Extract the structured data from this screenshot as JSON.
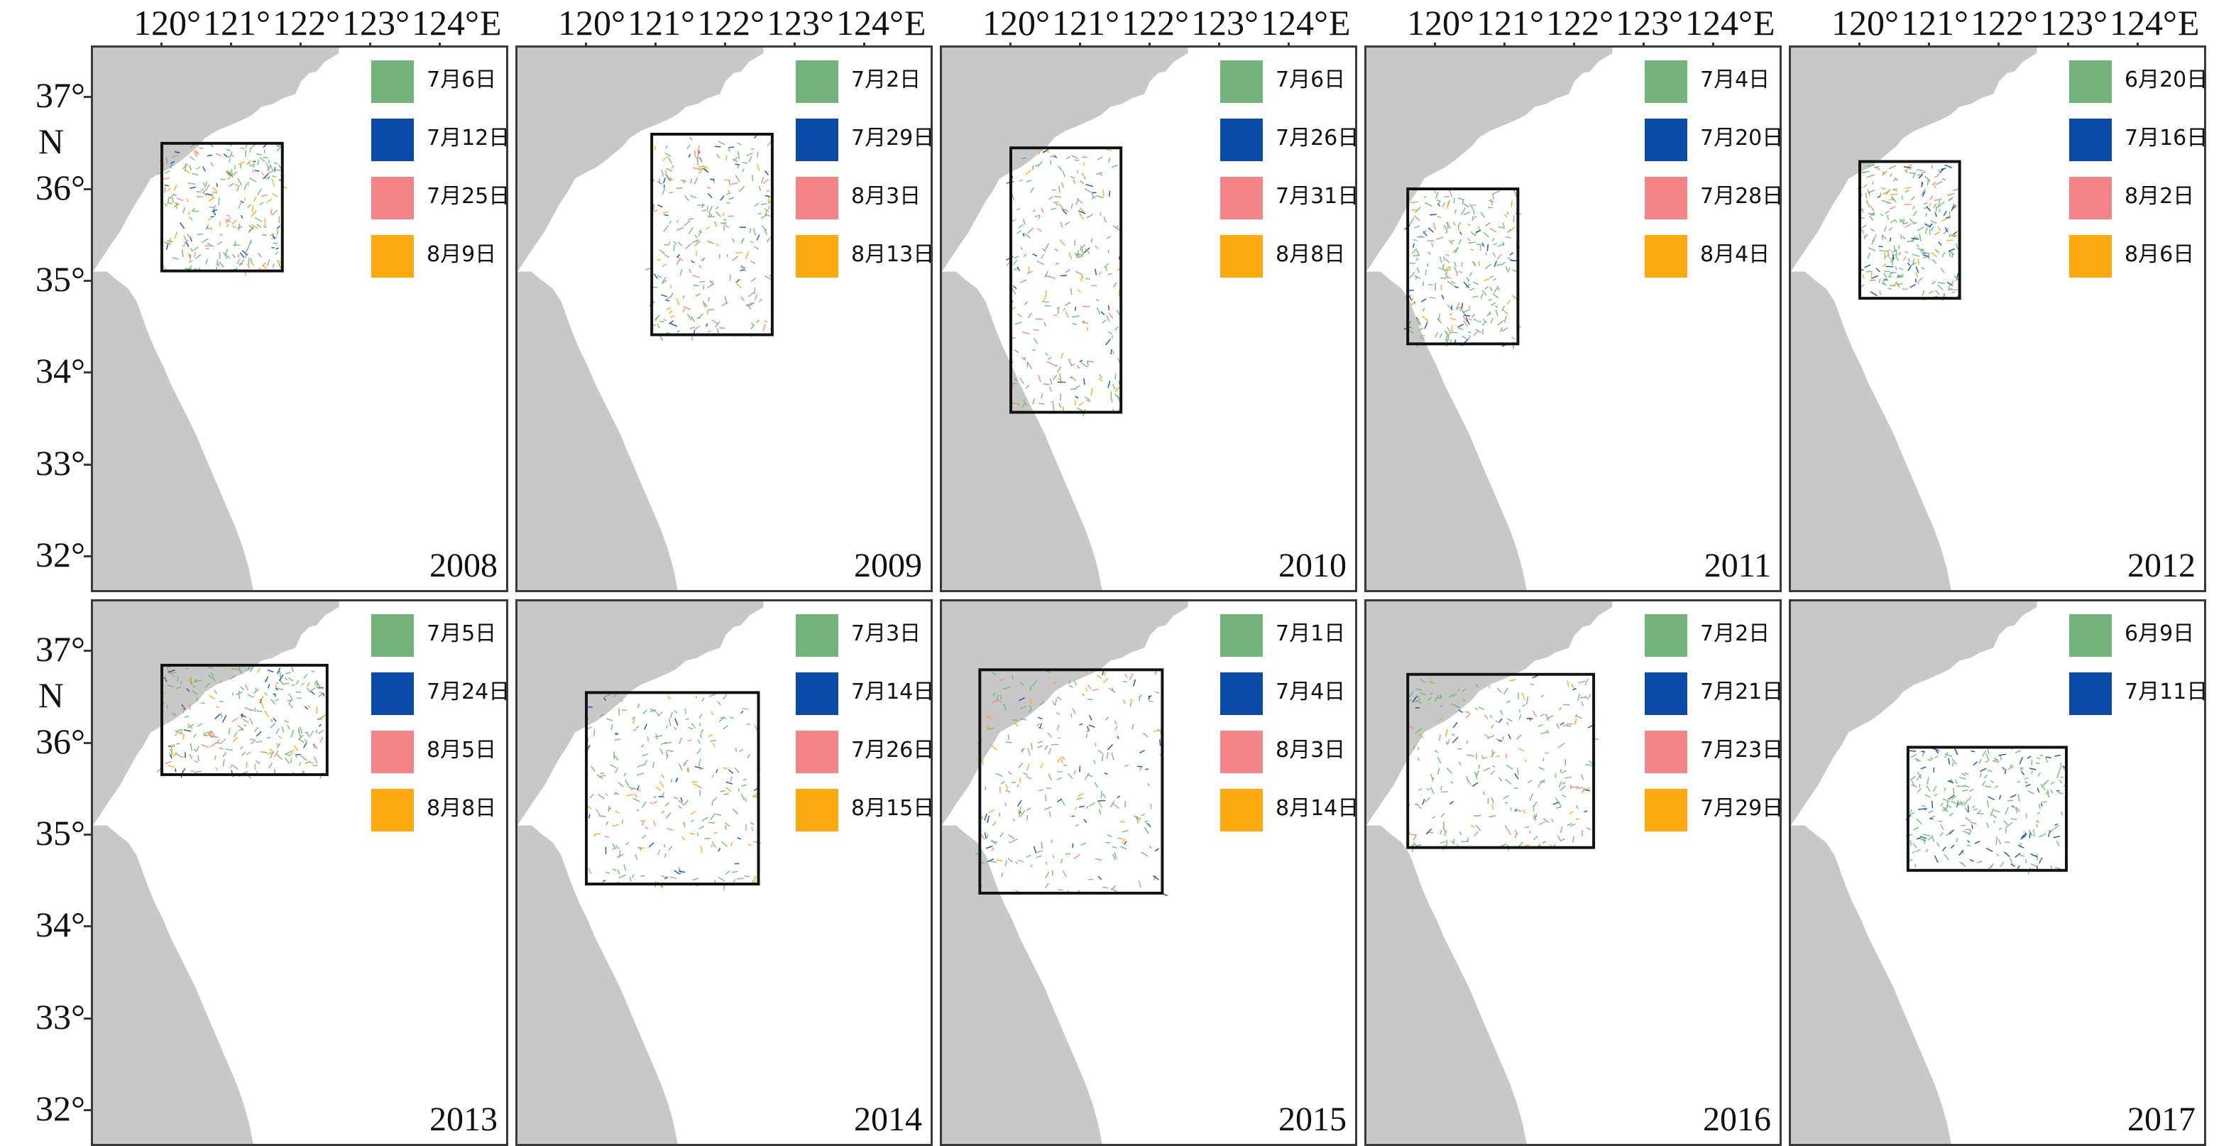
{
  "top_axis": {
    "labels": [
      "120°",
      "121°",
      "122°",
      "123°",
      "124°"
    ],
    "direction": "E"
  },
  "left_axis": {
    "rows": [
      {
        "labels": [
          "37°",
          "36°",
          "35°",
          "34°",
          "33°",
          "32°"
        ],
        "direction": "N"
      },
      {
        "labels": [
          "37°",
          "36°",
          "35°",
          "34°",
          "33°",
          "32°"
        ],
        "direction": "N"
      }
    ]
  },
  "colors": {
    "green": "#74b47a",
    "blue": "#0a4aa8",
    "pink": "#f48487",
    "orange": "#fda80f",
    "land": "#c8c8c8",
    "box": "#111111"
  },
  "panels": [
    {
      "year": "2008",
      "legend": [
        {
          "label": "7月6日",
          "color": "#74b47a"
        },
        {
          "label": "7月12日",
          "color": "#0a4aa8"
        },
        {
          "label": "7月25日",
          "color": "#f48487"
        },
        {
          "label": "8月9日",
          "color": "#fda80f"
        }
      ],
      "study_area": {
        "lon": [
          120.0,
          121.75
        ],
        "lat": [
          35.1,
          36.5
        ]
      }
    },
    {
      "year": "2009",
      "legend": [
        {
          "label": "7月2日",
          "color": "#74b47a"
        },
        {
          "label": "7月29日",
          "color": "#0a4aa8"
        },
        {
          "label": "8月3日",
          "color": "#f48487"
        },
        {
          "label": "8月13日",
          "color": "#fda80f"
        }
      ],
      "study_area": {
        "lon": [
          120.95,
          122.7
        ],
        "lat": [
          34.4,
          36.6
        ]
      }
    },
    {
      "year": "2010",
      "legend": [
        {
          "label": "7月6日",
          "color": "#74b47a"
        },
        {
          "label": "7月26日",
          "color": "#0a4aa8"
        },
        {
          "label": "7月31日",
          "color": "#f48487"
        },
        {
          "label": "8月8日",
          "color": "#fda80f"
        }
      ],
      "study_area": {
        "lon": [
          120.0,
          121.6
        ],
        "lat": [
          33.55,
          36.45
        ]
      }
    },
    {
      "year": "2011",
      "legend": [
        {
          "label": "7月4日",
          "color": "#74b47a"
        },
        {
          "label": "7月20日",
          "color": "#0a4aa8"
        },
        {
          "label": "7月28日",
          "color": "#f48487"
        },
        {
          "label": "8月4日",
          "color": "#fda80f"
        }
      ],
      "study_area": {
        "lon": [
          119.6,
          121.2
        ],
        "lat": [
          34.3,
          36.0
        ]
      }
    },
    {
      "year": "2012",
      "legend": [
        {
          "label": "6月20日",
          "color": "#74b47a"
        },
        {
          "label": "7月16日",
          "color": "#0a4aa8"
        },
        {
          "label": "8月2日",
          "color": "#f48487"
        },
        {
          "label": "8月6日",
          "color": "#fda80f"
        }
      ],
      "study_area": {
        "lon": [
          120.0,
          121.45
        ],
        "lat": [
          34.8,
          36.3
        ]
      }
    },
    {
      "year": "2013",
      "legend": [
        {
          "label": "7月5日",
          "color": "#74b47a"
        },
        {
          "label": "7月24日",
          "color": "#0a4aa8"
        },
        {
          "label": "8月5日",
          "color": "#f48487"
        },
        {
          "label": "8月8日",
          "color": "#fda80f"
        }
      ],
      "study_area": {
        "lon": [
          120.0,
          122.4
        ],
        "lat": [
          35.65,
          36.85
        ]
      }
    },
    {
      "year": "2014",
      "legend": [
        {
          "label": "7月3日",
          "color": "#74b47a"
        },
        {
          "label": "7月14日",
          "color": "#0a4aa8"
        },
        {
          "label": "7月26日",
          "color": "#f48487"
        },
        {
          "label": "8月15日",
          "color": "#fda80f"
        }
      ],
      "study_area": {
        "lon": [
          120.0,
          122.5
        ],
        "lat": [
          34.45,
          36.55
        ]
      }
    },
    {
      "year": "2015",
      "legend": [
        {
          "label": "7月1日",
          "color": "#74b47a"
        },
        {
          "label": "7月4日",
          "color": "#0a4aa8"
        },
        {
          "label": "8月3日",
          "color": "#f48487"
        },
        {
          "label": "8月14日",
          "color": "#fda80f"
        }
      ],
      "study_area": {
        "lon": [
          119.55,
          122.2
        ],
        "lat": [
          34.35,
          36.8
        ]
      }
    },
    {
      "year": "2016",
      "legend": [
        {
          "label": "7月2日",
          "color": "#74b47a"
        },
        {
          "label": "7月21日",
          "color": "#0a4aa8"
        },
        {
          "label": "7月23日",
          "color": "#f48487"
        },
        {
          "label": "7月29日",
          "color": "#fda80f"
        }
      ],
      "study_area": {
        "lon": [
          119.6,
          122.3
        ],
        "lat": [
          34.85,
          36.75
        ]
      }
    },
    {
      "year": "2017",
      "legend": [
        {
          "label": "6月9日",
          "color": "#74b47a"
        },
        {
          "label": "7月11日",
          "color": "#0a4aa8"
        }
      ],
      "study_area": {
        "lon": [
          120.7,
          123.0
        ],
        "lat": [
          34.6,
          35.95
        ]
      }
    }
  ]
}
